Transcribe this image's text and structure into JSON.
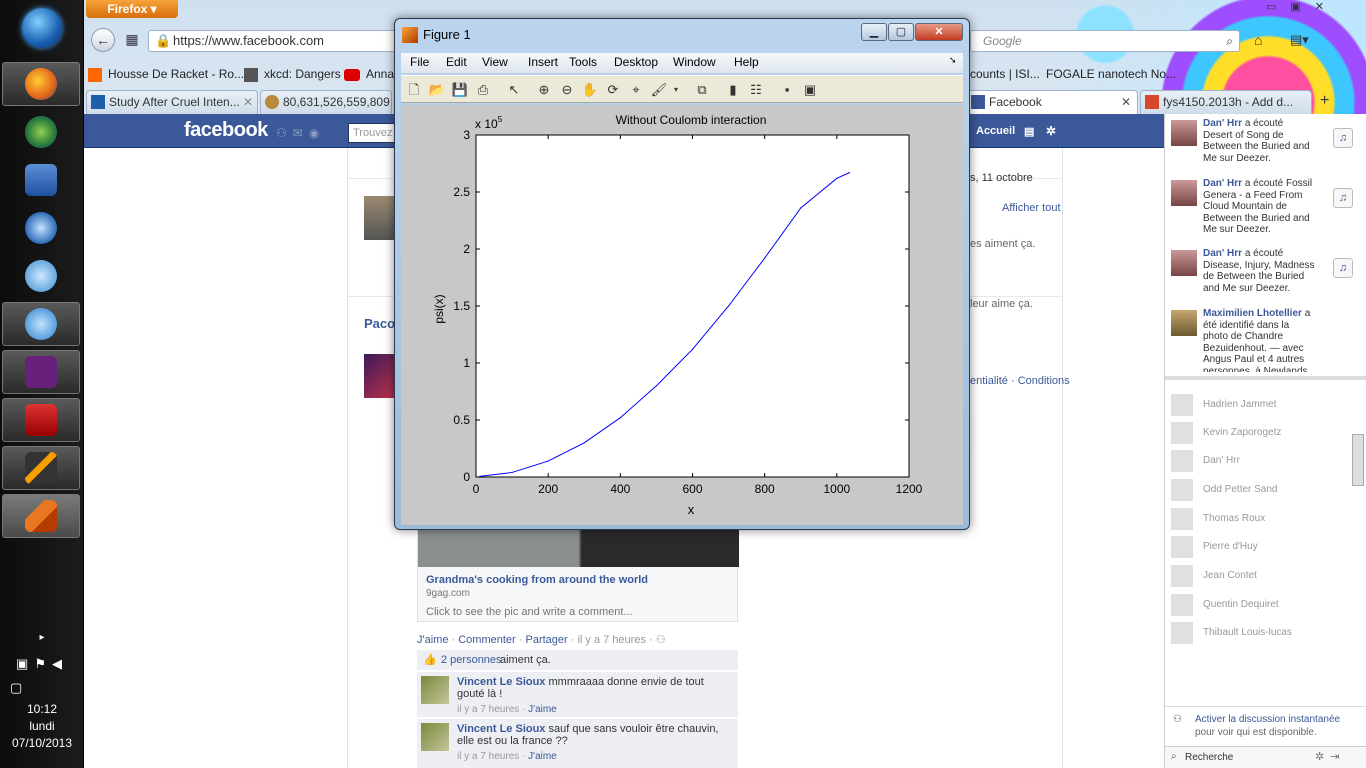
{
  "firefox": {
    "menu_button": "Firefox",
    "url": "https://www.facebook.com",
    "search_placeholder": "Google",
    "bookmarks": [
      "Housse De Racket - Ro...",
      "xkcd: Dangers",
      "Anna",
      "counts | ISI...",
      "FOGALE nanotech No..."
    ],
    "tabs": [
      "Study After Cruel Inten...",
      "80,631,526,559,809 co",
      "Facebook",
      "fys4150.2013h - Add d..."
    ]
  },
  "taskbar": {
    "time": "10:12",
    "day": "lundi",
    "date": "07/10/2013",
    "icons": [
      "start-orb-icon",
      "firefox-icon",
      "globe-icon",
      "word-icon",
      "thunderbird-icon",
      "cat-icon",
      "itunes-icon",
      "visual-studio-icon",
      "acrobat-icon",
      "lyx-icon",
      "matlab-icon"
    ]
  },
  "facebook": {
    "logo": "facebook",
    "search_placeholder": "Trouvez",
    "home_label": "Accueil",
    "feed": {
      "date_fragment": "s, 11 octobre",
      "show_all": "Afficher tout",
      "likes1": "es aiment ça.",
      "likes2": "leur aime ça.",
      "author_fragment": "Paco",
      "footer_links": "entialité · Conditions",
      "link_title": "Grandma's cooking from around the world",
      "link_domain": "9gag.com",
      "link_prompt": "Click to see the pic and write a comment...",
      "actions": [
        "J'aime",
        "Commenter",
        "Partager"
      ],
      "time_ago": "il y a 7 heures",
      "like_count": "2 personnes",
      "like_suffix": "aiment ça.",
      "comments": [
        {
          "author": "Vincent Le Sioux",
          "text": "mmmraaaa donne envie de tout gouté là !",
          "time": "il y a 7 heures",
          "like": "J'aime"
        },
        {
          "author": "Vincent Le Sioux",
          "text": "sauf que sans vouloir être chauvin, elle est ou la france ??",
          "time": "il y a 7 heures",
          "like": "J'aime"
        }
      ]
    },
    "ticker": [
      {
        "name": "Dan' Hrr",
        "text": "a écouté Desert of Song de Between the Buried and Me sur Deezer."
      },
      {
        "name": "Dan' Hrr",
        "text": "a écouté Fossil Genera - a Feed From Cloud Mountain de Between the Buried and Me sur Deezer."
      },
      {
        "name": "Dan' Hrr",
        "text": "a écouté Disease, Injury, Madness de Between the Buried and Me sur Deezer."
      },
      {
        "name": "Maximilien Lhotellier",
        "text": "a été identifié dans la photo de Chandre Bezuidenhout. — avec Angus Paul et 4 autres personnes. à Newlands Rugby Stadium."
      }
    ],
    "chat_contacts": [
      "Hadrien Jammet",
      "Kevin Zaporogetz",
      "Dan' Hrr",
      "Odd Petter Sand",
      "Thomas Roux",
      "Pierre d'Huy",
      "Jean Contet",
      "Quentin Dequiret",
      "Thibault Louis-lucas"
    ],
    "chat_enable": "Activer la discussion instantanée",
    "chat_enable_sub": "pour voir qui est disponible.",
    "chat_search": "Recherche"
  },
  "figure": {
    "window_title": "Figure 1",
    "menus": [
      "File",
      "Edit",
      "View",
      "Insert",
      "Tools",
      "Desktop",
      "Window",
      "Help"
    ]
  },
  "chart_data": {
    "type": "line",
    "title": "Without Coulomb interaction",
    "xlabel": "x",
    "ylabel": "psi(x)",
    "xlim": [
      0,
      1200
    ],
    "ylim": [
      0,
      300000
    ],
    "xticks": [
      0,
      200,
      400,
      600,
      800,
      1000,
      1200
    ],
    "yticks": [
      0,
      0.5,
      1,
      1.5,
      2,
      2.5,
      3
    ],
    "y_multiplier": "x 10",
    "y_multiplier_exp": "5",
    "series_color": "#0000ff",
    "x": [
      10,
      100,
      200,
      300,
      400,
      500,
      600,
      700,
      800,
      900,
      1000,
      1035
    ],
    "y": [
      500,
      4000,
      14000,
      30000,
      52000,
      80000,
      112000,
      150000,
      192000,
      236000,
      262000,
      267000
    ]
  }
}
